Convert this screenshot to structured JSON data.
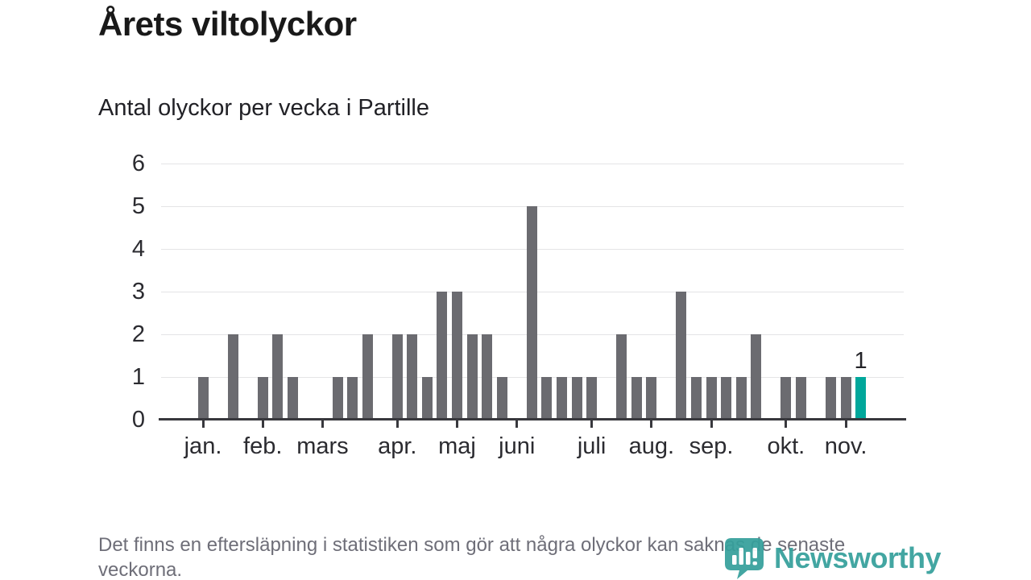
{
  "header": {
    "title": "Årets viltolyckor",
    "subtitle": "Antal olyckor per vecka i Partille"
  },
  "chart_data": {
    "type": "bar",
    "title": "Årets viltolyckor",
    "subtitle": "Antal olyckor per vecka i Partille",
    "x_unit": "vecka (januari–november)",
    "values": [
      1,
      0,
      2,
      0,
      1,
      2,
      1,
      0,
      0,
      1,
      1,
      2,
      0,
      2,
      2,
      1,
      3,
      3,
      2,
      2,
      1,
      0,
      5,
      1,
      1,
      1,
      1,
      0,
      2,
      1,
      1,
      0,
      3,
      1,
      1,
      1,
      1,
      2,
      0,
      1,
      1,
      0,
      1,
      1,
      1
    ],
    "month_tick_labels": [
      "jan.",
      "feb.",
      "mars",
      "apr.",
      "maj",
      "juni",
      "juli",
      "aug.",
      "sep.",
      "okt.",
      "nov."
    ],
    "month_tick_slots": [
      0,
      4,
      8,
      13,
      17,
      21,
      26,
      30,
      34,
      39,
      43
    ],
    "y_ticks": [
      0,
      1,
      2,
      3,
      4,
      5,
      6
    ],
    "ylim": [
      0,
      6
    ],
    "grid": "horizontal",
    "legend": "none",
    "bar_color": "#6b6b70",
    "highlight_color": "#00a79b",
    "highlight_last_bar": true,
    "last_bar_label": "1"
  },
  "footer": {
    "note": "Det finns en eftersläpning i statistiken som gör att några olyckor kan saknas de senaste veckorna."
  },
  "logo": {
    "text": "Newsworthy",
    "color": "#35a09c"
  }
}
